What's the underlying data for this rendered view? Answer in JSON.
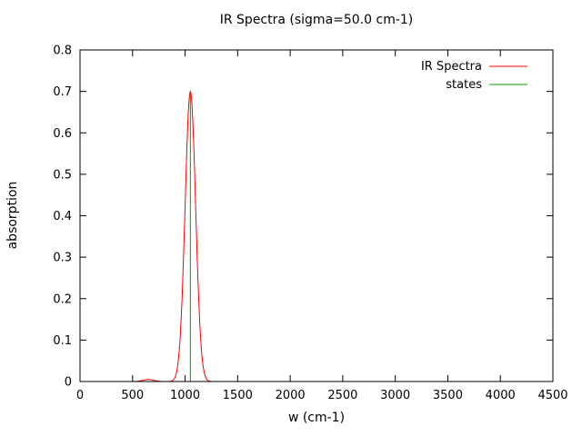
{
  "chart_data": {
    "type": "line",
    "title": "IR Spectra (sigma=50.0 cm-1)",
    "xlabel": "w (cm-1)",
    "ylabel": "absorption",
    "xlim": [
      0,
      4500
    ],
    "ylim": [
      0,
      0.8
    ],
    "x_ticks": [
      0,
      500,
      1000,
      1500,
      2000,
      2500,
      3000,
      3500,
      4000,
      4500
    ],
    "x_tick_labels": [
      "0",
      "500",
      "1000",
      "1500",
      "2000",
      "2500",
      "3000",
      "3500",
      "4000",
      "4500"
    ],
    "y_ticks": [
      0,
      0.1,
      0.2,
      0.3,
      0.4,
      0.5,
      0.6,
      0.7,
      0.8
    ],
    "y_tick_labels": [
      "0",
      "0.1",
      "0.2",
      "0.3",
      "0.4",
      "0.5",
      "0.6",
      "0.7",
      "0.8"
    ],
    "grid": false,
    "legend_position": "top-right",
    "axis_color": "#000000",
    "background_color": "#ffffff",
    "series": [
      {
        "name": "IR Spectra",
        "color": "#ff0000",
        "style": "gaussian-broadened",
        "sigma": 50.0,
        "peaks": [
          {
            "center": 650,
            "height": 0.005
          },
          {
            "center": 1050,
            "height": 0.7
          }
        ]
      },
      {
        "name": "states",
        "color": "#00a000",
        "style": "impulses",
        "points": [
          {
            "x": 1050,
            "y": 0.7
          }
        ]
      }
    ]
  }
}
